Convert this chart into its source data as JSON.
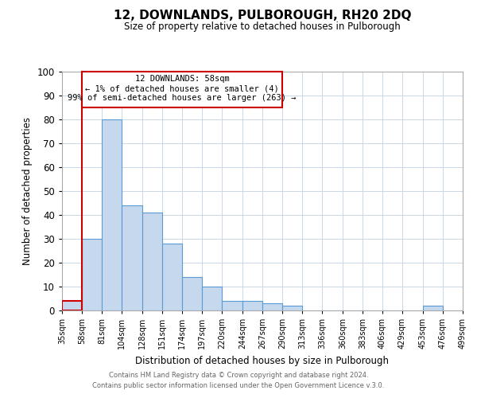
{
  "title": "12, DOWNLANDS, PULBOROUGH, RH20 2DQ",
  "subtitle": "Size of property relative to detached houses in Pulborough",
  "xlabel": "Distribution of detached houses by size in Pulborough",
  "ylabel": "Number of detached properties",
  "bar_color": "#c5d8ed",
  "bar_edge_color": "#5b9bd5",
  "highlight_bar_edge_color": "#cc0000",
  "background_color": "#ffffff",
  "grid_color": "#c8d8e8",
  "ylim": [
    0,
    100
  ],
  "bin_edges": [
    35,
    58,
    81,
    104,
    128,
    151,
    174,
    197,
    220,
    244,
    267,
    290,
    313,
    336,
    360,
    383,
    406,
    429,
    453,
    476,
    499
  ],
  "counts": [
    4,
    30,
    80,
    44,
    41,
    28,
    14,
    10,
    4,
    4,
    3,
    2,
    0,
    0,
    0,
    0,
    0,
    0,
    2,
    0
  ],
  "highlight_bin_index": 0,
  "x_tick_labels": [
    "35sqm",
    "58sqm",
    "81sqm",
    "104sqm",
    "128sqm",
    "151sqm",
    "174sqm",
    "197sqm",
    "220sqm",
    "244sqm",
    "267sqm",
    "290sqm",
    "313sqm",
    "336sqm",
    "360sqm",
    "383sqm",
    "406sqm",
    "429sqm",
    "453sqm",
    "476sqm",
    "499sqm"
  ],
  "annotation_title": "12 DOWNLANDS: 58sqm",
  "annotation_line1": "← 1% of detached houses are smaller (4)",
  "annotation_line2": "99% of semi-detached houses are larger (263) →",
  "footer_line1": "Contains HM Land Registry data © Crown copyright and database right 2024.",
  "footer_line2": "Contains public sector information licensed under the Open Government Licence v.3.0."
}
